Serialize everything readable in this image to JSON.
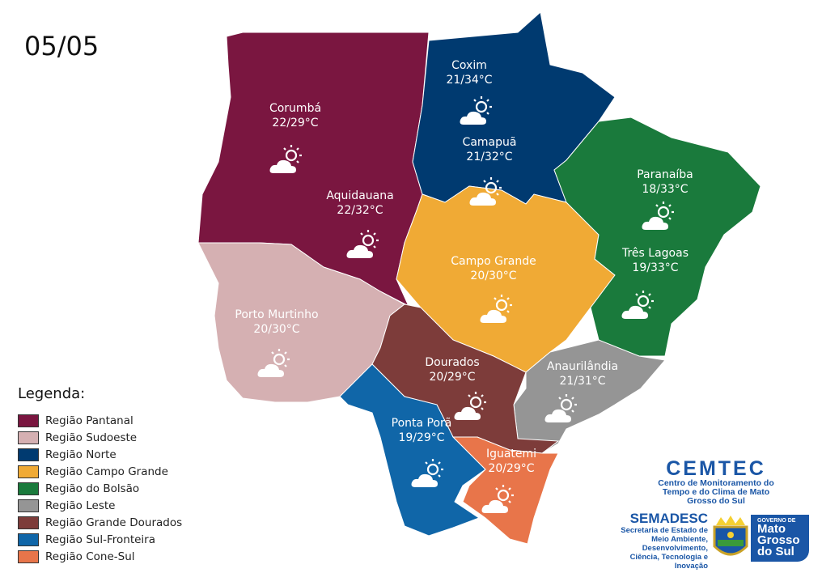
{
  "date": "05/05",
  "regions": [
    {
      "name": "Região Pantanal",
      "color": "#7a1640"
    },
    {
      "name": "Região Sudoeste",
      "color": "#d5b0b2"
    },
    {
      "name": "Região Norte",
      "color": "#003a70"
    },
    {
      "name": "Região Campo Grande",
      "color": "#f0aa35"
    },
    {
      "name": "Região do Bolsão",
      "color": "#1a7a3c"
    },
    {
      "name": "Região Leste",
      "color": "#959595"
    },
    {
      "name": "Região Grande Dourados",
      "color": "#7d3c3a"
    },
    {
      "name": "Região Sul-Fronteira",
      "color": "#1066a8"
    },
    {
      "name": "Região Cone-Sul",
      "color": "#e8754a"
    }
  ],
  "cities": [
    {
      "name": "Corumbá",
      "temp": "22/29°C",
      "icon": "sun-cloud-icon"
    },
    {
      "name": "Aquidauana",
      "temp": "22/32°C",
      "icon": "sun-cloud-icon"
    },
    {
      "name": "Coxim",
      "temp": "21/34°C",
      "icon": "sun-cloud-icon"
    },
    {
      "name": "Camapuã",
      "temp": "21/32°C",
      "icon": "sun-cloud-icon"
    },
    {
      "name": "Paranaíba",
      "temp": "18/33°C",
      "icon": "sun-cloud-icon"
    },
    {
      "name": "Três Lagoas",
      "temp": "19/33°C",
      "icon": "sun-cloud-icon"
    },
    {
      "name": "Campo Grande",
      "temp": "20/30°C",
      "icon": "sun-cloud-icon"
    },
    {
      "name": "Porto Murtinho",
      "temp": "20/30°C",
      "icon": "sun-cloud-icon"
    },
    {
      "name": "Dourados",
      "temp": "20/29°C",
      "icon": "sun-cloud-icon"
    },
    {
      "name": "Anaurilândia",
      "temp": "21/31°C",
      "icon": "sun-cloud-icon"
    },
    {
      "name": "Ponta Porã",
      "temp": "19/29°C",
      "icon": "sun-cloud-icon"
    },
    {
      "name": "Iguatemi",
      "temp": "20/29°C",
      "icon": "sun-cloud-icon"
    }
  ],
  "legend": {
    "title": "Legenda:"
  },
  "logos": {
    "cemtec": "CEMTEC",
    "cemtec_sub": "Centro de Monitoramento do Tempo e do Clima de Mato Grosso do Sul",
    "semadesc": "SEMADESC",
    "semadesc_sub": "Secretaria de Estado de Meio Ambiente, Desenvolvimento, Ciência, Tecnologia e Inovação",
    "gov_small": "GOVERNO DE",
    "gov_big": "Mato Grosso do Sul"
  }
}
